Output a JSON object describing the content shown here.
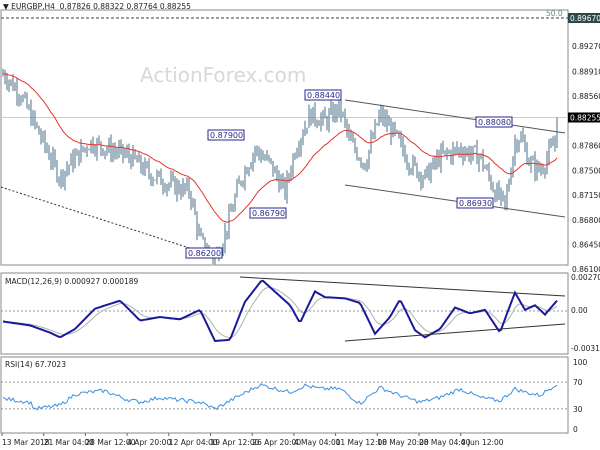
{
  "header": {
    "symbol": "EURGBP,H4",
    "ohlc": "0.87826 0.88322 0.87764 0.88255",
    "arrow": "▼"
  },
  "watermark": "ActionForex.com",
  "colors": {
    "bars": "#4a6f85",
    "ma": "#e8322b",
    "macd": "#1a1a9a",
    "signal": "#b0b0b0",
    "rsi": "#3d8fe0",
    "labels": "#2a2a8a"
  },
  "chart_data": [
    {
      "type": "line",
      "title": "EURGBP,H4",
      "yticks": [
        "0.89670",
        "0.89270",
        "0.88910",
        "0.88560",
        "0.88255",
        "0.87860",
        "0.87500",
        "0.87150",
        "0.86800",
        "0.86450",
        "0.86100"
      ],
      "ylim": [
        0.861,
        0.8967
      ],
      "current_price": "0.88255",
      "fib_label": "50.0",
      "fib_level": "0.89670",
      "close": [
        0.8885,
        0.886,
        0.88,
        0.874,
        0.876,
        0.879,
        0.878,
        0.877,
        0.8745,
        0.873,
        0.872,
        0.865,
        0.8625,
        0.866,
        0.8735,
        0.878,
        0.876,
        0.872,
        0.878,
        0.883,
        0.882,
        0.884,
        0.879,
        0.876,
        0.883,
        0.88,
        0.876,
        0.874,
        0.877,
        0.878,
        0.877,
        0.872,
        0.87,
        0.879,
        0.88,
        0.876,
        0.875,
        0.879,
        0.88255
      ],
      "annotations": [
        "0.88440",
        "0.87900",
        "0.86790",
        "0.86200",
        "0.88080",
        "0.86930"
      ]
    },
    {
      "type": "line",
      "title": "MACD(12,26,9) 0.000927 0.000189",
      "yticks": [
        "0.002706",
        "0.00",
        "-0.003155"
      ],
      "macd": [
        -0.0009,
        -0.0012,
        -0.0018,
        -0.0022,
        -0.0015,
        0.0002,
        0.0009,
        -0.0008,
        -0.0005,
        -0.0007,
        0.0001,
        -0.0025,
        -0.0024,
        0.0008,
        0.0027,
        0.0005,
        -0.001,
        0.0017,
        0.0012,
        0.0011,
        0.0007,
        -0.0019,
        -0.0005,
        0.001,
        -0.0016,
        -0.0022,
        -0.0015,
        0.0003,
        -0.0002,
        0.0001,
        -0.0018,
        0.0016,
        0.0001,
        0.0005,
        -0.0003,
        0.0009
      ]
    },
    {
      "type": "line",
      "title": "RSI(14) 67.7023",
      "yticks": [
        "100",
        "70",
        "30",
        "0"
      ],
      "rsi": [
        45,
        40,
        30,
        35,
        52,
        55,
        57,
        45,
        40,
        47,
        43,
        40,
        30,
        50,
        66,
        55,
        65,
        60,
        60,
        38,
        62,
        50,
        40,
        47,
        60,
        47,
        42,
        60,
        55,
        50,
        68
      ]
    }
  ],
  "xticks": [
    "13 Mar 2018",
    "21 Mar 04:00",
    "28 Mar 12:00",
    "4 Apr 20:00",
    "12 Apr 04:00",
    "19 Apr 12:00",
    "26 Apr 20:00",
    "4 May 04:00",
    "11 May 12:00",
    "18 May 20:00",
    "28 May 04:00",
    "4 Jun 12:00"
  ]
}
